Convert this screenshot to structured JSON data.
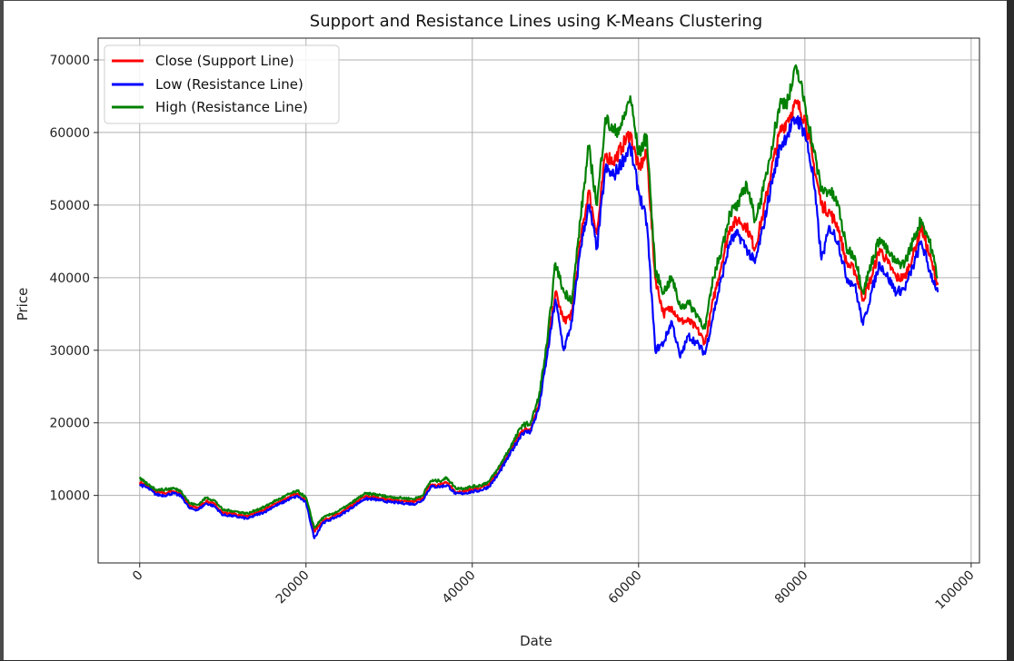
{
  "chart_data": {
    "type": "line",
    "title": "Support and Resistance Lines using K-Means Clustering",
    "xlabel": "Date",
    "ylabel": "Price",
    "xlim": [
      -5000,
      101000
    ],
    "ylim": [
      700,
      73000
    ],
    "xticks": [
      0,
      20000,
      40000,
      60000,
      80000,
      100000
    ],
    "yticks": [
      10000,
      20000,
      30000,
      40000,
      50000,
      60000,
      70000
    ],
    "grid": true,
    "legend_position": "top-left",
    "x_tick_rotation_deg": 45,
    "series": [
      {
        "name": "Close (Support Line)",
        "color": "#ff0000",
        "x": [
          0,
          1000,
          2000,
          3000,
          4000,
          5000,
          6000,
          7000,
          8000,
          9000,
          10000,
          11000,
          12000,
          13000,
          14000,
          15000,
          16000,
          17000,
          18000,
          19000,
          20000,
          21000,
          22000,
          23000,
          24000,
          25000,
          26000,
          27000,
          28000,
          29000,
          30000,
          31000,
          32000,
          33000,
          34000,
          35000,
          36000,
          37000,
          38000,
          39000,
          40000,
          41000,
          42000,
          43000,
          44000,
          45000,
          46000,
          47000,
          48000,
          49000,
          50000,
          51000,
          52000,
          53000,
          54000,
          55000,
          56000,
          57000,
          58000,
          59000,
          60000,
          61000,
          62000,
          63000,
          64000,
          65000,
          66000,
          67000,
          68000,
          69000,
          70000,
          71000,
          72000,
          73000,
          74000,
          75000,
          76000,
          77000,
          78000,
          79000,
          80000,
          81000,
          82000,
          83000,
          84000,
          85000,
          86000,
          87000,
          88000,
          89000,
          90000,
          91000,
          92000,
          93000,
          94000,
          95000,
          96000
        ],
        "values": [
          11800,
          11200,
          10400,
          10300,
          10600,
          10200,
          8500,
          8300,
          9200,
          8800,
          7600,
          7500,
          7300,
          7100,
          7600,
          8000,
          8700,
          9200,
          9800,
          10200,
          9300,
          5000,
          6500,
          7000,
          7500,
          8200,
          9000,
          9800,
          9800,
          9600,
          9400,
          9300,
          9200,
          9100,
          9600,
          11500,
          11500,
          11700,
          10500,
          10600,
          10800,
          11000,
          11500,
          13000,
          15000,
          17000,
          19000,
          19200,
          22500,
          30000,
          38000,
          34000,
          35000,
          45000,
          52000,
          46000,
          57000,
          56000,
          58000,
          60000,
          55000,
          57000,
          40000,
          35000,
          36000,
          34000,
          34000,
          33000,
          31000,
          37000,
          42000,
          47000,
          48000,
          47000,
          44000,
          49000,
          55000,
          60000,
          62000,
          64000,
          62000,
          56000,
          50000,
          49000,
          47000,
          42000,
          41000,
          37000,
          40000,
          44000,
          42000,
          40000,
          40000,
          43000,
          47000,
          43000,
          39000
        ]
      },
      {
        "name": "Low (Resistance Line)",
        "color": "#0000ff",
        "x": [
          0,
          1000,
          2000,
          3000,
          4000,
          5000,
          6000,
          7000,
          8000,
          9000,
          10000,
          11000,
          12000,
          13000,
          14000,
          15000,
          16000,
          17000,
          18000,
          19000,
          20000,
          21000,
          22000,
          23000,
          24000,
          25000,
          26000,
          27000,
          28000,
          29000,
          30000,
          31000,
          32000,
          33000,
          34000,
          35000,
          36000,
          37000,
          38000,
          39000,
          40000,
          41000,
          42000,
          43000,
          44000,
          45000,
          46000,
          47000,
          48000,
          49000,
          50000,
          51000,
          52000,
          53000,
          54000,
          55000,
          56000,
          57000,
          58000,
          59000,
          60000,
          61000,
          62000,
          63000,
          64000,
          65000,
          66000,
          67000,
          68000,
          69000,
          70000,
          71000,
          72000,
          73000,
          74000,
          75000,
          76000,
          77000,
          78000,
          79000,
          80000,
          81000,
          82000,
          83000,
          84000,
          85000,
          86000,
          87000,
          88000,
          89000,
          90000,
          91000,
          92000,
          93000,
          94000,
          95000,
          96000
        ],
        "values": [
          11500,
          11000,
          10100,
          10000,
          10300,
          9900,
          8200,
          8000,
          8900,
          8500,
          7300,
          7200,
          7000,
          6800,
          7300,
          7700,
          8400,
          8900,
          9500,
          9900,
          9000,
          4100,
          6200,
          6700,
          7200,
          7900,
          8700,
          9500,
          9500,
          9300,
          9100,
          9000,
          8900,
          8800,
          9300,
          11200,
          11200,
          11400,
          10200,
          10300,
          10500,
          10700,
          11200,
          12700,
          14600,
          16600,
          18600,
          18800,
          22000,
          29200,
          37000,
          30000,
          34000,
          44000,
          50000,
          44000,
          55000,
          54000,
          56000,
          58000,
          52000,
          47500,
          30000,
          31000,
          34000,
          29000,
          32000,
          31000,
          29500,
          35000,
          40000,
          45000,
          46000,
          44000,
          42000,
          47000,
          53000,
          58000,
          60000,
          62000,
          60000,
          54000,
          42500,
          47000,
          45000,
          40000,
          39000,
          33500,
          38000,
          42000,
          40000,
          38000,
          38500,
          41500,
          45000,
          41000,
          38000
        ]
      },
      {
        "name": "High (Resistance Line)",
        "color": "#008000",
        "x": [
          0,
          1000,
          2000,
          3000,
          4000,
          5000,
          6000,
          7000,
          8000,
          9000,
          10000,
          11000,
          12000,
          13000,
          14000,
          15000,
          16000,
          17000,
          18000,
          19000,
          20000,
          21000,
          22000,
          23000,
          24000,
          25000,
          26000,
          27000,
          28000,
          29000,
          30000,
          31000,
          32000,
          33000,
          34000,
          35000,
          36000,
          37000,
          38000,
          39000,
          40000,
          41000,
          42000,
          43000,
          44000,
          45000,
          46000,
          47000,
          48000,
          49000,
          50000,
          51000,
          52000,
          53000,
          54000,
          55000,
          56000,
          57000,
          58000,
          59000,
          60000,
          61000,
          62000,
          63000,
          64000,
          65000,
          66000,
          67000,
          68000,
          69000,
          70000,
          71000,
          72000,
          73000,
          74000,
          75000,
          76000,
          77000,
          78000,
          79000,
          80000,
          81000,
          82000,
          83000,
          84000,
          85000,
          86000,
          87000,
          88000,
          89000,
          90000,
          91000,
          92000,
          93000,
          94000,
          95000,
          96000
        ],
        "values": [
          12300,
          11500,
          10800,
          10800,
          11000,
          10600,
          8900,
          8700,
          9700,
          9300,
          8000,
          7900,
          7700,
          7500,
          8000,
          8400,
          9100,
          9600,
          10200,
          10600,
          9700,
          5500,
          6900,
          7400,
          7900,
          8600,
          9400,
          10200,
          10200,
          10000,
          9800,
          9700,
          9600,
          9500,
          10000,
          12000,
          12000,
          12400,
          11000,
          11000,
          11200,
          11400,
          11900,
          13500,
          15500,
          17500,
          19700,
          19900,
          23500,
          31000,
          42000,
          38000,
          37000,
          48000,
          58000,
          50000,
          62000,
          60000,
          61000,
          65000,
          57000,
          59500,
          41000,
          38000,
          40000,
          36000,
          36500,
          35000,
          33000,
          40000,
          44000,
          49000,
          50000,
          53000,
          48000,
          52000,
          58000,
          64000,
          64500,
          69000,
          64000,
          58000,
          52000,
          52000,
          50000,
          44000,
          43000,
          38000,
          42000,
          45500,
          43500,
          42000,
          42000,
          45000,
          48000,
          45000,
          40000
        ]
      }
    ]
  }
}
